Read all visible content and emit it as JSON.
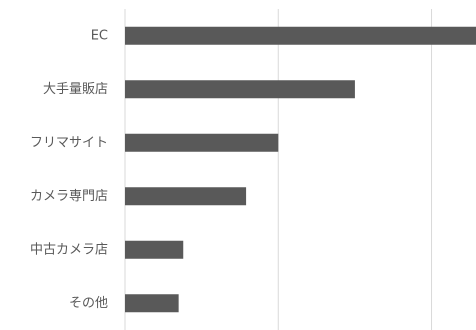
{
  "chart_data": {
    "type": "barh",
    "categories": [
      "EC",
      "大手量販店",
      "フリマサイト",
      "カメラ専門店",
      "中古カメラ店",
      "その他"
    ],
    "values": [
      2.4,
      1.5,
      1.0,
      0.79,
      0.38,
      0.35
    ],
    "color": "#595959",
    "xlim": [
      0,
      2.29
    ],
    "xticks": [
      0,
      1,
      2
    ],
    "tick_labels": false,
    "grid": true
  }
}
